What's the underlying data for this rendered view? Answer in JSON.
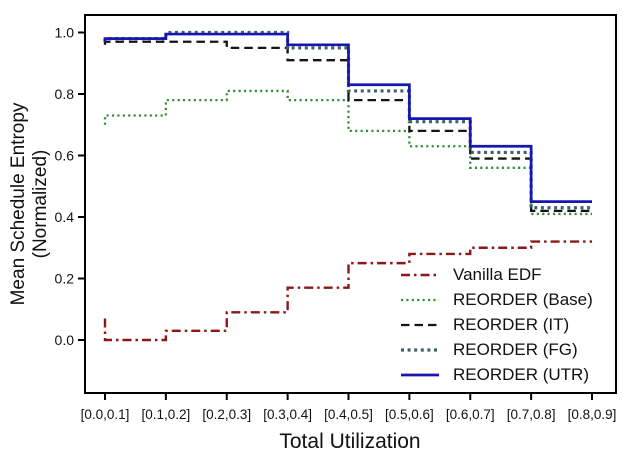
{
  "chart_data": {
    "type": "line",
    "step_mode": "pre",
    "title": "",
    "xlabel": "Total Utilization",
    "ylabel_line1": "Mean Schedule Entropy",
    "ylabel_line2": "(Normalized)",
    "categories": [
      "[0.0,0.1]",
      "[0.1,0.2]",
      "[0.2,0.3]",
      "[0.3,0.4]",
      "[0.4,0.5]",
      "[0.5,0.6]",
      "[0.6,0.7]",
      "[0.7,0.8]",
      "[0.8,0.9]"
    ],
    "y_tick_labels": [
      "1.0",
      "0.8",
      "0.6",
      "0.4",
      "0.2",
      "0.0"
    ],
    "y_ticks": [
      1.0,
      0.8,
      0.6,
      0.4,
      0.2,
      0.0
    ],
    "ylim_shown": [
      -0.17,
      1.06
    ],
    "grid": false,
    "legend_position": "lower right",
    "values_note": "step-pre points at bin ticks; first value is the short leading tail drawn at the first tick",
    "series": [
      {
        "name": "Vanilla EDF",
        "color": "#8B1717",
        "style": "dashdot",
        "values": [
          0.07,
          0.0,
          0.03,
          0.09,
          0.17,
          0.25,
          0.28,
          0.3,
          0.32
        ]
      },
      {
        "name": "REORDER (Base)",
        "color": "#2E8B2E",
        "style": "dotted",
        "values": [
          0.7,
          0.73,
          0.78,
          0.81,
          0.78,
          0.68,
          0.63,
          0.56,
          0.41
        ]
      },
      {
        "name": "REORDER (IT)",
        "color": "#141414",
        "style": "dashed",
        "values": [
          0.96,
          0.97,
          0.97,
          0.95,
          0.91,
          0.78,
          0.68,
          0.59,
          0.42
        ]
      },
      {
        "name": "REORDER (FG)",
        "color": "#3D6363",
        "style": "dotted-bold",
        "values": [
          0.97,
          0.98,
          1.0,
          1.0,
          0.95,
          0.81,
          0.71,
          0.61,
          0.43
        ]
      },
      {
        "name": "REORDER (UTR)",
        "color": "#1616B0",
        "style": "solid",
        "values": [
          0.97,
          0.98,
          0.995,
          0.995,
          0.96,
          0.83,
          0.72,
          0.63,
          0.45
        ]
      }
    ]
  }
}
